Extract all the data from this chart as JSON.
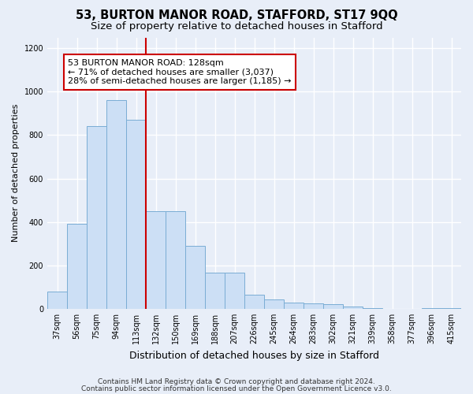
{
  "title": "53, BURTON MANOR ROAD, STAFFORD, ST17 9QQ",
  "subtitle": "Size of property relative to detached houses in Stafford",
  "xlabel": "Distribution of detached houses by size in Stafford",
  "ylabel": "Number of detached properties",
  "categories": [
    "37sqm",
    "56sqm",
    "75sqm",
    "94sqm",
    "113sqm",
    "132sqm",
    "150sqm",
    "169sqm",
    "188sqm",
    "207sqm",
    "226sqm",
    "245sqm",
    "264sqm",
    "283sqm",
    "302sqm",
    "321sqm",
    "339sqm",
    "358sqm",
    "377sqm",
    "396sqm",
    "415sqm"
  ],
  "values": [
    80,
    390,
    840,
    960,
    870,
    450,
    450,
    290,
    165,
    165,
    65,
    45,
    30,
    25,
    20,
    10,
    5,
    0,
    0,
    5,
    5
  ],
  "bar_color": "#ccdff5",
  "bar_edge_color": "#7aadd4",
  "vline_x_index": 5,
  "vline_color": "#cc0000",
  "annotation_text": "53 BURTON MANOR ROAD: 128sqm\n← 71% of detached houses are smaller (3,037)\n28% of semi-detached houses are larger (1,185) →",
  "annotation_box_color": "#ffffff",
  "annotation_box_edge": "#cc0000",
  "ylim": [
    0,
    1250
  ],
  "yticks": [
    0,
    200,
    400,
    600,
    800,
    1000,
    1200
  ],
  "figure_bg_color": "#e8eef8",
  "axes_bg_color": "#e8eef8",
  "grid_color": "#ffffff",
  "footer_line1": "Contains HM Land Registry data © Crown copyright and database right 2024.",
  "footer_line2": "Contains public sector information licensed under the Open Government Licence v3.0.",
  "title_fontsize": 10.5,
  "subtitle_fontsize": 9.5,
  "xlabel_fontsize": 9,
  "ylabel_fontsize": 8,
  "tick_fontsize": 7,
  "annotation_fontsize": 8,
  "footer_fontsize": 6.5
}
